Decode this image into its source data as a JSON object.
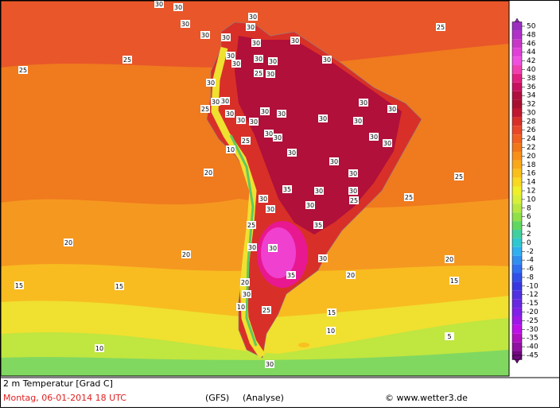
{
  "map": {
    "title": "2 m Temperatur [Grad C]",
    "date": "Montag, 06-01-2014  18 UTC",
    "model": "(GFS)",
    "run": "(Analyse)",
    "credit": "© www.wetter3.de",
    "legend": {
      "labels": [
        50,
        48,
        46,
        44,
        42,
        40,
        38,
        36,
        34,
        32,
        30,
        28,
        26,
        24,
        22,
        20,
        18,
        16,
        14,
        12,
        10,
        8,
        6,
        4,
        2,
        0,
        -2,
        -4,
        -6,
        -8,
        -10,
        -12,
        -15,
        -20,
        -25,
        -30,
        -35,
        -40,
        -45
      ],
      "colors": [
        "#9b30c0",
        "#b030c8",
        "#c838c8",
        "#e040d8",
        "#f050e0",
        "#f040b0",
        "#e02080",
        "#c81060",
        "#b01040",
        "#a81030",
        "#c01830",
        "#d83028",
        "#e84828",
        "#f06020",
        "#f07818",
        "#f89018",
        "#f8a818",
        "#f8c018",
        "#f8d820",
        "#f0f028",
        "#d8f038",
        "#b8e840",
        "#90e048",
        "#60d860",
        "#40d0a0",
        "#30c8d0",
        "#30b0f0",
        "#3090f0",
        "#3070f0",
        "#3050e8",
        "#3838e0",
        "#5030e0",
        "#6828e0",
        "#8020e8",
        "#a018e8",
        "#c010e8",
        "#b010c0",
        "#9010a0",
        "#700880"
      ]
    },
    "map_labels": [
      "30",
      "30",
      "30",
      "30",
      "30",
      "30",
      "30",
      "30",
      "30",
      "30",
      "30",
      "30",
      "30",
      "30",
      "30",
      "30",
      "30",
      "30",
      "30",
      "30",
      "30",
      "30",
      "30",
      "30",
      "30",
      "30",
      "30",
      "30",
      "30",
      "30",
      "30",
      "30",
      "30",
      "30",
      "30",
      "30",
      "30",
      "30",
      "30",
      "30",
      "30",
      "30",
      "30",
      "30",
      "25",
      "25",
      "25",
      "25",
      "25",
      "25",
      "25",
      "25",
      "25",
      "25",
      "25",
      "20",
      "20",
      "20",
      "20",
      "20",
      "20",
      "15",
      "15",
      "15",
      "15",
      "10",
      "10",
      "10",
      "10",
      "35",
      "35",
      "35",
      "5"
    ]
  }
}
